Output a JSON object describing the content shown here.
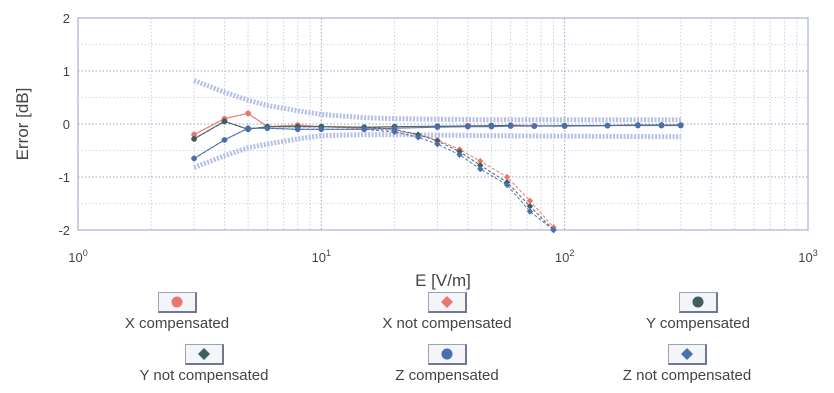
{
  "chart_data": {
    "type": "line",
    "xscale": "log",
    "xlim": [
      1,
      1000
    ],
    "ylim": [
      -2,
      2
    ],
    "xlabel": "E [V/m]",
    "ylabel": "Error [dB]",
    "xticks": [
      {
        "value": 1,
        "base": "10",
        "exp": "0"
      },
      {
        "value": 10,
        "base": "10",
        "exp": "1"
      },
      {
        "value": 100,
        "base": "10",
        "exp": "2"
      },
      {
        "value": 1000,
        "base": "10",
        "exp": "3"
      }
    ],
    "yticks": [
      2,
      1,
      0,
      -1,
      -2
    ],
    "grid": true,
    "legend_position": "bottom",
    "uncertainty_band": {
      "upper": {
        "x": [
          3,
          4,
          5,
          6,
          8,
          10,
          15,
          20,
          30,
          50,
          100,
          300
        ],
        "y": [
          0.82,
          0.6,
          0.45,
          0.35,
          0.25,
          0.18,
          0.12,
          0.1,
          0.09,
          0.08,
          0.08,
          0.08
        ]
      },
      "lower": {
        "x": [
          3,
          4,
          5,
          6,
          8,
          10,
          15,
          20,
          30,
          50,
          100,
          300
        ],
        "y": [
          -0.82,
          -0.6,
          -0.45,
          -0.38,
          -0.28,
          -0.22,
          -0.2,
          -0.2,
          -0.21,
          -0.22,
          -0.23,
          -0.24
        ]
      }
    },
    "series": [
      {
        "name": "X compensated",
        "color": "#e8776f",
        "marker": "circle",
        "x": [
          3,
          4,
          5,
          6,
          8,
          10,
          15,
          20,
          30,
          40,
          50,
          60,
          75,
          100,
          150,
          200,
          250,
          300
        ],
        "y": [
          -0.2,
          0.1,
          0.2,
          -0.05,
          -0.02,
          -0.05,
          -0.08,
          -0.05,
          -0.05,
          -0.03,
          -0.04,
          -0.02,
          -0.03,
          -0.04,
          -0.03,
          -0.02,
          -0.02,
          -0.02
        ]
      },
      {
        "name": "X not compensated",
        "color": "#e8776f",
        "marker": "diamond",
        "x": [
          3,
          4,
          5,
          6,
          8,
          10,
          15,
          20,
          25,
          30,
          37,
          45,
          58,
          72,
          90
        ],
        "y": [
          -0.2,
          0.1,
          0.2,
          -0.05,
          -0.02,
          -0.05,
          -0.08,
          -0.12,
          -0.2,
          -0.3,
          -0.48,
          -0.7,
          -1.0,
          -1.45,
          -1.95
        ]
      },
      {
        "name": "Y compensated",
        "color": "#3f5f5c",
        "marker": "circle",
        "x": [
          3,
          4,
          5,
          6,
          8,
          10,
          15,
          20,
          30,
          40,
          50,
          60,
          75,
          100,
          150,
          200,
          250,
          300
        ],
        "y": [
          -0.28,
          0.05,
          -0.1,
          -0.05,
          -0.05,
          -0.05,
          -0.06,
          -0.05,
          -0.04,
          -0.04,
          -0.03,
          -0.03,
          -0.04,
          -0.03,
          -0.03,
          -0.02,
          -0.02,
          -0.02
        ]
      },
      {
        "name": "Y not compensated",
        "color": "#3f5f5c",
        "marker": "diamond",
        "x": [
          3,
          4,
          5,
          6,
          8,
          10,
          15,
          20,
          25,
          30,
          37,
          45,
          58,
          72,
          90
        ],
        "y": [
          -0.28,
          0.05,
          -0.1,
          -0.05,
          -0.05,
          -0.05,
          -0.06,
          -0.1,
          -0.2,
          -0.32,
          -0.52,
          -0.78,
          -1.1,
          -1.55,
          -2.0
        ]
      },
      {
        "name": "Z compensated",
        "color": "#4a6fb0",
        "marker": "circle",
        "x": [
          3,
          4,
          5,
          6,
          8,
          10,
          15,
          20,
          30,
          40,
          50,
          60,
          75,
          100,
          150,
          200,
          250,
          300
        ],
        "y": [
          -0.65,
          -0.3,
          -0.08,
          -0.08,
          -0.1,
          -0.1,
          -0.1,
          -0.08,
          -0.06,
          -0.05,
          -0.05,
          -0.04,
          -0.04,
          -0.04,
          -0.03,
          -0.03,
          -0.03,
          -0.03
        ]
      },
      {
        "name": "Z not compensated",
        "color": "#4a6fb0",
        "marker": "diamond",
        "x": [
          3,
          4,
          5,
          6,
          8,
          10,
          15,
          20,
          25,
          30,
          37,
          45,
          58,
          72,
          90
        ],
        "y": [
          -0.65,
          -0.3,
          -0.08,
          -0.08,
          -0.1,
          -0.1,
          -0.1,
          -0.15,
          -0.25,
          -0.38,
          -0.58,
          -0.85,
          -1.15,
          -1.65,
          -2.0
        ]
      }
    ]
  }
}
